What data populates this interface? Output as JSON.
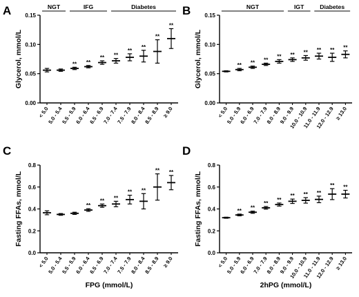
{
  "chart_data": [
    {
      "type": "errorbar",
      "panel": "A",
      "ylabel": "Glycerol, mmol/L",
      "xlabel": "",
      "ylim": [
        0,
        0.15
      ],
      "yticks": [
        0.0,
        0.05,
        0.1,
        0.15
      ],
      "ytick_labels": [
        "0.00",
        "0.05",
        "0.10",
        "0.15"
      ],
      "categories": [
        "< 5.0",
        "5.0 - 5.4",
        "5.5 - 5.9",
        "6.0 - 6.4",
        "6.5 - 6.9",
        "7.0 - 7.4",
        "7.5 - 7.9",
        "8.0 - 8.4",
        "8.5 - 8.9",
        "≥ 9.0"
      ],
      "groups": [
        {
          "label": "NGT",
          "from": 0,
          "to": 1
        },
        {
          "label": "IFG",
          "from": 2,
          "to": 4
        },
        {
          "label": "Diabetes",
          "from": 5,
          "to": 9
        }
      ],
      "values": [
        0.056,
        0.056,
        0.059,
        0.062,
        0.069,
        0.072,
        0.078,
        0.08,
        0.088,
        0.11
      ],
      "errors": [
        0.003,
        0.002,
        0.002,
        0.002,
        0.003,
        0.004,
        0.006,
        0.01,
        0.02,
        0.017
      ],
      "significance": [
        "",
        "",
        "**",
        "**",
        "**",
        "**",
        "**",
        "**",
        "**",
        "**"
      ]
    },
    {
      "type": "errorbar",
      "panel": "B",
      "ylabel": "Glycerol, mmol/L",
      "xlabel": "",
      "ylim": [
        0,
        0.15
      ],
      "yticks": [
        0.0,
        0.05,
        0.1,
        0.15
      ],
      "ytick_labels": [
        "0.00",
        "0.05",
        "0.10",
        "0.15"
      ],
      "categories": [
        "< 5.0",
        "5.0 - 5.9",
        "6.0 - 6.9",
        "7.0 - 7.9",
        "8.0 - 8.9",
        "9.0 - 9.9",
        "10.0 - 10.9",
        "11.0 - 11.9",
        "12.0 - 12.9",
        "≥ 13.0"
      ],
      "groups": [
        {
          "label": "NGT",
          "from": 0,
          "to": 4
        },
        {
          "label": "IGT",
          "from": 5,
          "to": 6
        },
        {
          "label": "Diabetes",
          "from": 7,
          "to": 9
        }
      ],
      "values": [
        0.054,
        0.057,
        0.061,
        0.066,
        0.071,
        0.074,
        0.077,
        0.08,
        0.078,
        0.083
      ],
      "errors": [
        0.001,
        0.002,
        0.002,
        0.002,
        0.003,
        0.003,
        0.004,
        0.005,
        0.007,
        0.006
      ],
      "significance": [
        "",
        "**",
        "**",
        "**",
        "**",
        "**",
        "**",
        "**",
        "**",
        "**"
      ]
    },
    {
      "type": "errorbar",
      "panel": "C",
      "ylabel": "Fasting FFAs, mmol/L",
      "xlabel": "FPG (mmol/L)",
      "ylim": [
        0,
        0.8
      ],
      "yticks": [
        0.0,
        0.2,
        0.4,
        0.6,
        0.8
      ],
      "ytick_labels": [
        "0.0",
        "0.2",
        "0.4",
        "0.6",
        "0.8"
      ],
      "categories": [
        "< 5.0",
        "5.0 - 5.4",
        "5.5 - 5.9",
        "6.0 - 6.4",
        "6.5 - 6.9",
        "7.0 - 7.4",
        "7.5 - 7.9",
        "8.0 - 8.4",
        "8.5 - 8.9",
        "≥ 9.0"
      ],
      "groups": [],
      "values": [
        0.365,
        0.35,
        0.36,
        0.39,
        0.43,
        0.445,
        0.485,
        0.47,
        0.6,
        0.64
      ],
      "errors": [
        0.018,
        0.008,
        0.01,
        0.012,
        0.015,
        0.025,
        0.04,
        0.07,
        0.12,
        0.065
      ],
      "significance": [
        "",
        "",
        "",
        "**",
        "**",
        "**",
        "**",
        "**",
        "**",
        "**"
      ]
    },
    {
      "type": "errorbar",
      "panel": "D",
      "ylabel": "Fasting FFAs, mmol/L",
      "xlabel": "2hPG (mmol/L)",
      "ylim": [
        0,
        0.8
      ],
      "yticks": [
        0.0,
        0.2,
        0.4,
        0.6,
        0.8
      ],
      "ytick_labels": [
        "0.0",
        "0.2",
        "0.4",
        "0.6",
        "0.8"
      ],
      "categories": [
        "< 5.0",
        "5.0 - 5.9",
        "6.0 - 6.9",
        "7.0 - 7.9",
        "8.0 - 8.9",
        "9.0 - 9.9",
        "10.0 - 10.9",
        "11.0 - 11.9",
        "12.0 - 12.9",
        "≥ 13.0"
      ],
      "groups": [],
      "values": [
        0.32,
        0.345,
        0.37,
        0.41,
        0.44,
        0.47,
        0.478,
        0.487,
        0.535,
        0.535
      ],
      "errors": [
        0.005,
        0.008,
        0.01,
        0.012,
        0.014,
        0.02,
        0.025,
        0.03,
        0.05,
        0.035
      ],
      "significance": [
        "",
        "**",
        "**",
        "**",
        "**",
        "**",
        "**",
        "**",
        "**",
        "**"
      ]
    }
  ]
}
